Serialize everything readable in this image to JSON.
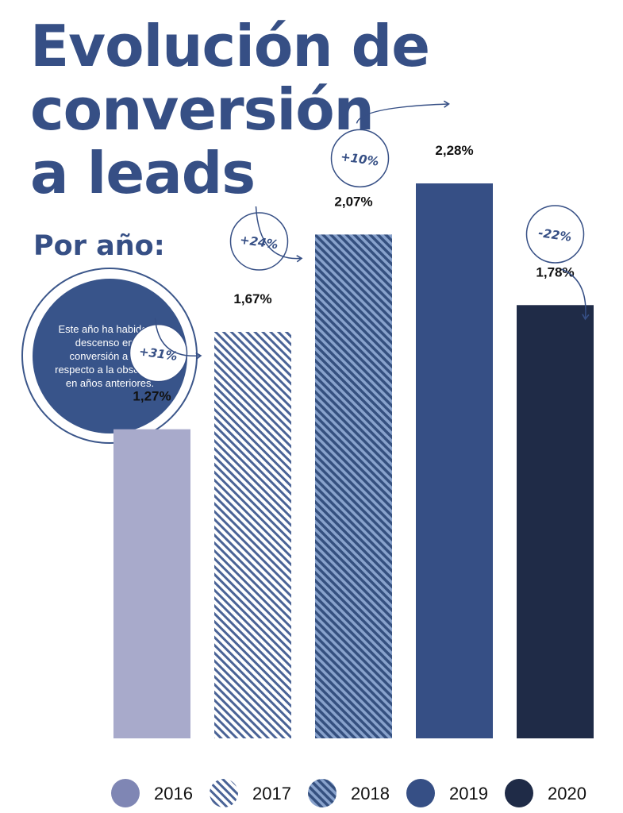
{
  "title_lines": [
    "Evolución de",
    "conversión",
    "a leads"
  ],
  "subtitle": "Por año:",
  "note": "Este año ha habido un descenso en la conversión a lead respecto a la observada en años anteriores.",
  "colors": {
    "2016": "#a8aacb",
    "2017": "#4a6396",
    "2018": "#6280b3",
    "2019": "#364f85",
    "2020": "#1f2b47",
    "accent": "#364f85"
  },
  "chart_data": {
    "type": "bar",
    "title": "Evolución de conversión a leads",
    "subtitle": "Por año:",
    "categories": [
      "2016",
      "2017",
      "2018",
      "2019",
      "2020"
    ],
    "values": [
      1.27,
      1.67,
      2.07,
      2.28,
      1.78
    ],
    "value_labels": [
      "1,27%",
      "1,67%",
      "2,07%",
      "2,28%",
      "1,78%"
    ],
    "changes": [
      "+31%",
      "+24%",
      "+10%",
      "-22%"
    ],
    "patterns": [
      "solid",
      "hatched-white",
      "hatched-blue",
      "solid",
      "solid"
    ],
    "legend": [
      "2016",
      "2017",
      "2018",
      "2019",
      "2020"
    ],
    "legend_position": "bottom",
    "ylim": [
      0,
      2.28
    ],
    "grid": false,
    "xlabel": "",
    "ylabel": ""
  }
}
